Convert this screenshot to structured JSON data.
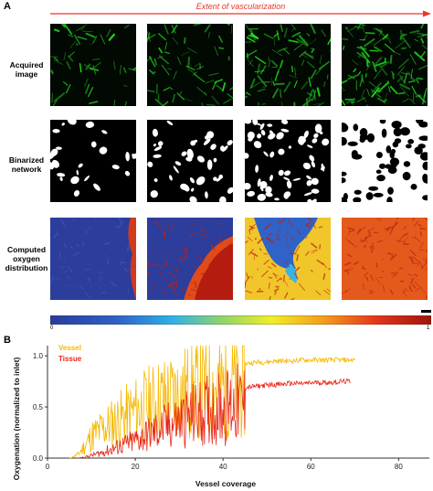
{
  "panel_a": {
    "letter": "A",
    "arrow_label": "Extent of vascularization",
    "rows": [
      {
        "label_lines": [
          "Acquired",
          "image"
        ]
      },
      {
        "label_lines": [
          "Binarized",
          "network"
        ]
      },
      {
        "label_lines": [
          "Computed",
          "oxygen",
          "distribution"
        ]
      }
    ],
    "colorbar": {
      "min_label": "0",
      "max_label": "1"
    },
    "colors": {
      "arrow": "#e8362b",
      "green": "#39d12e",
      "low": "#2b3b9b",
      "high": "#b01a0e"
    }
  },
  "panel_b": {
    "letter": "B"
  },
  "chart_data": {
    "type": "line",
    "title": "",
    "xlabel": "Vessel coverage",
    "ylabel": "Oxygenation (normalized to inlet)",
    "xlim": [
      0,
      87
    ],
    "ylim": [
      0,
      1.1
    ],
    "xticks": [
      0,
      20,
      40,
      60,
      80
    ],
    "yticks": [
      "0.0",
      "0.5",
      "1.0"
    ],
    "legend_placement": "top-left",
    "series": [
      {
        "name": "Vessel",
        "color": "#f5b800",
        "x": [
          5,
          6,
          7,
          8,
          9,
          10,
          12,
          14,
          16,
          18,
          20,
          22,
          24,
          26,
          28,
          30,
          32,
          34,
          36,
          38,
          40,
          42,
          44,
          46,
          48,
          50,
          52,
          54,
          56,
          58,
          60,
          62,
          65,
          68,
          70
        ],
        "y": [
          0.0,
          0.02,
          0.05,
          0.12,
          0.2,
          0.28,
          0.35,
          0.42,
          0.48,
          0.54,
          0.6,
          0.65,
          0.7,
          0.75,
          0.78,
          0.82,
          0.85,
          0.87,
          0.88,
          0.9,
          0.91,
          0.92,
          0.93,
          0.94,
          0.95,
          0.95,
          0.96,
          0.96,
          0.96,
          0.97,
          0.97,
          0.97,
          0.97,
          0.97,
          0.97
        ]
      },
      {
        "name": "Tissue",
        "color": "#e8261b",
        "x": [
          7,
          9,
          11,
          13,
          15,
          17,
          19,
          21,
          23,
          25,
          27,
          29,
          31,
          33,
          35,
          37,
          39,
          41,
          43,
          45,
          47,
          49,
          51,
          53,
          55,
          57,
          59,
          61,
          63,
          65,
          67,
          69
        ],
        "y": [
          0.0,
          0.02,
          0.05,
          0.08,
          0.12,
          0.16,
          0.2,
          0.25,
          0.3,
          0.35,
          0.4,
          0.45,
          0.5,
          0.54,
          0.58,
          0.61,
          0.64,
          0.66,
          0.68,
          0.7,
          0.71,
          0.72,
          0.73,
          0.73,
          0.74,
          0.74,
          0.74,
          0.75,
          0.75,
          0.75,
          0.76,
          0.76
        ]
      }
    ]
  }
}
